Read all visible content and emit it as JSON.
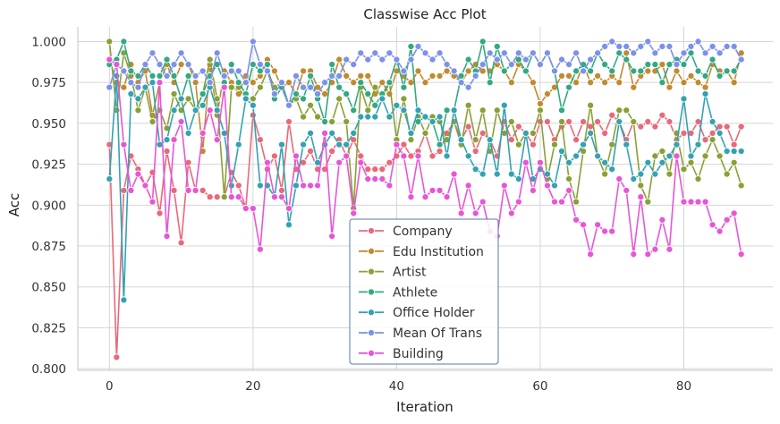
{
  "chart_data": {
    "type": "line",
    "title": "Classwise Acc Plot",
    "xlabel": "Iteration",
    "ylabel": "Acc",
    "xlim": [
      -4.4,
      92.4
    ],
    "ylim": [
      0.799,
      1.009
    ],
    "xticks": [
      0,
      20,
      40,
      60,
      80
    ],
    "yticks": [
      0.8,
      0.825,
      0.85,
      0.875,
      0.9,
      0.925,
      0.95,
      0.975,
      1.0
    ],
    "ytick_labels": [
      "0.800",
      "0.825",
      "0.850",
      "0.875",
      "0.900",
      "0.925",
      "0.950",
      "0.975",
      "1.000"
    ],
    "grid": true,
    "legend_position": "lower-center",
    "x": [
      0,
      1,
      2,
      3,
      4,
      5,
      6,
      7,
      8,
      9,
      10,
      11,
      12,
      13,
      14,
      15,
      16,
      17,
      18,
      19,
      20,
      21,
      22,
      23,
      24,
      25,
      26,
      27,
      28,
      29,
      30,
      31,
      32,
      33,
      34,
      35,
      36,
      37,
      38,
      39,
      40,
      41,
      42,
      43,
      44,
      45,
      46,
      47,
      48,
      49,
      50,
      51,
      52,
      53,
      54,
      55,
      56,
      57,
      58,
      59,
      60,
      61,
      62,
      63,
      64,
      65,
      66,
      67,
      68,
      69,
      70,
      71,
      72,
      73,
      74,
      75,
      76,
      77,
      78,
      79,
      80,
      81,
      82,
      83,
      84,
      85,
      86,
      87,
      88
    ],
    "series": [
      {
        "name": "Company",
        "color": "#e8697a",
        "values": [
          0.937,
          0.807,
          0.909,
          0.93,
          0.922,
          0.912,
          0.92,
          0.895,
          0.933,
          0.909,
          0.877,
          0.926,
          0.909,
          0.909,
          0.905,
          0.905,
          0.905,
          0.92,
          0.912,
          0.898,
          0.955,
          0.94,
          0.922,
          0.93,
          0.909,
          0.951,
          0.922,
          0.926,
          0.933,
          0.922,
          0.922,
          0.933,
          0.94,
          0.93,
          0.94,
          0.93,
          0.922,
          0.922,
          0.922,
          0.926,
          0.93,
          0.937,
          0.93,
          0.933,
          0.944,
          0.93,
          0.933,
          0.944,
          0.951,
          0.94,
          0.948,
          0.933,
          0.944,
          0.94,
          0.93,
          0.951,
          0.94,
          0.948,
          0.944,
          0.937,
          0.951,
          0.951,
          0.94,
          0.948,
          0.951,
          0.94,
          0.951,
          0.948,
          0.951,
          0.944,
          0.955,
          0.951,
          0.94,
          0.951,
          0.948,
          0.951,
          0.948,
          0.955,
          0.951,
          0.94,
          0.944,
          0.944,
          0.951,
          0.94,
          0.944,
          0.948,
          0.948,
          0.937,
          0.948
        ]
      },
      {
        "name": "Edu Institution",
        "color": "#c18a2e",
        "values": [
          0.989,
          0.975,
          0.972,
          0.986,
          0.975,
          0.982,
          0.955,
          0.975,
          0.986,
          0.975,
          0.986,
          0.986,
          0.975,
          0.933,
          0.986,
          0.955,
          0.982,
          0.975,
          0.968,
          0.979,
          0.975,
          0.979,
          0.989,
          0.982,
          0.972,
          0.975,
          0.968,
          0.982,
          0.982,
          0.972,
          0.968,
          0.975,
          0.989,
          0.979,
          0.975,
          0.979,
          0.979,
          0.968,
          0.975,
          0.968,
          0.982,
          0.979,
          0.975,
          0.982,
          0.975,
          0.979,
          0.979,
          0.982,
          0.979,
          0.975,
          0.982,
          0.986,
          0.982,
          0.982,
          0.986,
          0.982,
          0.975,
          0.986,
          0.982,
          0.975,
          0.962,
          0.968,
          0.972,
          0.979,
          0.979,
          0.975,
          0.986,
          0.975,
          0.979,
          0.975,
          0.979,
          0.975,
          0.993,
          0.972,
          0.979,
          0.982,
          0.982,
          0.986,
          0.972,
          0.982,
          0.975,
          0.979,
          0.975,
          0.972,
          0.986,
          0.982,
          0.982,
          0.975,
          0.993
        ]
      },
      {
        "name": "Artist",
        "color": "#88a135",
        "values": [
          1.0,
          0.958,
          0.993,
          0.979,
          0.958,
          0.972,
          0.951,
          0.958,
          0.947,
          0.968,
          0.958,
          0.965,
          0.958,
          0.968,
          0.989,
          0.965,
          0.905,
          0.972,
          0.972,
          0.965,
          0.965,
          0.972,
          0.982,
          0.972,
          0.975,
          0.961,
          0.965,
          0.954,
          0.961,
          0.954,
          0.951,
          0.951,
          0.965,
          0.951,
          0.898,
          0.972,
          0.958,
          0.972,
          0.965,
          0.975,
          0.94,
          0.965,
          0.94,
          0.954,
          0.944,
          0.954,
          0.951,
          0.94,
          0.951,
          0.937,
          0.961,
          0.94,
          0.958,
          0.933,
          0.958,
          0.944,
          0.951,
          0.937,
          0.944,
          0.944,
          0.958,
          0.916,
          0.937,
          0.951,
          0.916,
          0.902,
          0.933,
          0.961,
          0.93,
          0.919,
          0.937,
          0.958,
          0.958,
          0.951,
          0.912,
          0.902,
          0.93,
          0.933,
          0.919,
          0.944,
          0.922,
          0.926,
          0.916,
          0.93,
          0.94,
          0.93,
          0.919,
          0.926,
          0.912
        ]
      },
      {
        "name": "Athlete",
        "color": "#32a983",
        "values": [
          0.986,
          0.989,
          1.0,
          0.982,
          0.979,
          0.986,
          0.979,
          0.979,
          0.989,
          0.979,
          0.965,
          0.979,
          0.958,
          0.968,
          0.979,
          0.986,
          0.975,
          0.986,
          0.975,
          0.968,
          0.986,
          0.982,
          0.986,
          0.965,
          0.972,
          0.961,
          0.968,
          0.965,
          0.979,
          0.965,
          0.951,
          0.986,
          0.972,
          0.968,
          0.958,
          0.975,
          0.968,
          0.961,
          0.968,
          0.975,
          0.989,
          0.972,
          0.997,
          0.951,
          0.954,
          0.951,
          0.937,
          0.958,
          0.958,
          0.979,
          0.989,
          0.982,
          1.0,
          0.975,
          0.997,
          0.982,
          0.986,
          0.989,
          0.982,
          0.993,
          0.986,
          0.993,
          0.982,
          0.958,
          0.972,
          0.982,
          0.986,
          0.982,
          0.993,
          0.986,
          0.982,
          0.993,
          0.989,
          0.982,
          0.982,
          0.986,
          0.986,
          0.975,
          0.986,
          0.989,
          0.986,
          0.993,
          0.982,
          0.979,
          0.989,
          0.979,
          0.982,
          0.982,
          0.989
        ]
      },
      {
        "name": "Office Holder",
        "color": "#34a2b3",
        "values": [
          0.916,
          0.979,
          0.842,
          0.968,
          0.965,
          0.972,
          0.975,
          0.937,
          0.94,
          0.958,
          0.965,
          0.944,
          0.958,
          0.961,
          0.972,
          0.958,
          0.944,
          0.912,
          0.937,
          0.965,
          0.961,
          0.912,
          0.912,
          0.905,
          0.937,
          0.888,
          0.912,
          0.937,
          0.944,
          0.926,
          0.937,
          0.944,
          0.937,
          0.937,
          0.944,
          0.954,
          0.954,
          0.954,
          0.965,
          0.954,
          0.961,
          0.958,
          0.944,
          0.958,
          0.954,
          0.951,
          0.954,
          0.93,
          0.958,
          0.94,
          0.93,
          0.922,
          0.919,
          0.94,
          0.919,
          0.961,
          0.919,
          0.916,
          0.944,
          0.916,
          0.922,
          0.919,
          0.912,
          0.933,
          0.926,
          0.93,
          0.937,
          0.944,
          0.93,
          0.926,
          0.922,
          0.951,
          0.937,
          0.916,
          0.919,
          0.926,
          0.919,
          0.926,
          0.93,
          0.937,
          0.965,
          0.93,
          0.937,
          0.968,
          0.951,
          0.944,
          0.933,
          0.933,
          0.933
        ]
      },
      {
        "name": "Mean Of Trans",
        "color": "#7c91e8",
        "values": [
          0.972,
          0.986,
          0.982,
          0.975,
          0.972,
          0.986,
          0.993,
          0.986,
          0.979,
          0.986,
          0.993,
          0.986,
          0.979,
          0.982,
          0.975,
          0.993,
          0.979,
          0.982,
          0.982,
          0.975,
          1.0,
          0.986,
          0.982,
          0.968,
          0.975,
          0.961,
          0.979,
          0.972,
          0.972,
          0.968,
          0.975,
          0.979,
          0.979,
          0.989,
          0.986,
          0.993,
          0.989,
          0.993,
          0.989,
          0.993,
          0.989,
          0.982,
          0.989,
          0.997,
          0.993,
          0.989,
          0.993,
          0.986,
          0.982,
          0.975,
          0.972,
          0.979,
          0.986,
          0.993,
          0.989,
          0.993,
          0.986,
          0.993,
          0.989,
          0.993,
          0.986,
          0.993,
          0.982,
          0.989,
          0.986,
          0.993,
          0.982,
          0.989,
          0.993,
          0.997,
          1.0,
          0.997,
          0.997,
          0.993,
          0.997,
          1.0,
          0.993,
          0.997,
          0.997,
          0.986,
          0.993,
          0.997,
          1.0,
          0.993,
          0.997,
          0.993,
          0.997,
          0.997,
          0.989
        ]
      },
      {
        "name": "Building",
        "color": "#e756d6",
        "values": [
          0.989,
          0.986,
          0.937,
          0.909,
          0.919,
          0.912,
          0.902,
          0.975,
          0.881,
          0.94,
          0.951,
          0.909,
          0.909,
          0.944,
          0.958,
          0.94,
          0.972,
          0.905,
          0.905,
          0.898,
          0.898,
          0.873,
          0.926,
          0.905,
          0.905,
          0.898,
          0.93,
          0.912,
          0.912,
          0.912,
          0.944,
          0.881,
          0.926,
          0.93,
          0.895,
          0.926,
          0.916,
          0.916,
          0.916,
          0.912,
          0.937,
          0.93,
          0.905,
          0.93,
          0.905,
          0.909,
          0.909,
          0.905,
          0.919,
          0.895,
          0.912,
          0.895,
          0.902,
          0.884,
          0.881,
          0.912,
          0.895,
          0.902,
          0.926,
          0.909,
          0.926,
          0.912,
          0.902,
          0.902,
          0.909,
          0.891,
          0.888,
          0.87,
          0.888,
          0.884,
          0.884,
          0.916,
          0.909,
          0.87,
          0.905,
          0.87,
          0.873,
          0.891,
          0.873,
          0.93,
          0.902,
          0.902,
          0.902,
          0.902,
          0.888,
          0.884,
          0.891,
          0.895,
          0.87
        ]
      }
    ]
  }
}
